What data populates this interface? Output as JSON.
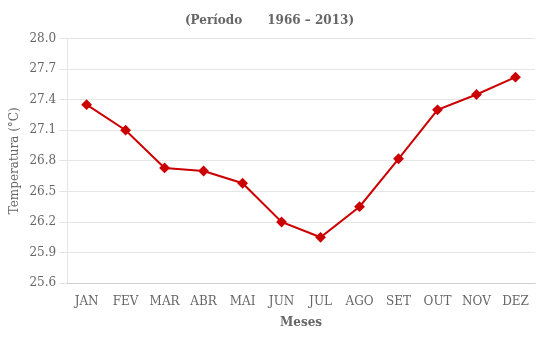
{
  "chart_data": {
    "type": "line",
    "title": "(Período      1966 – 2013)",
    "x_label": "Meses",
    "y_label": "Temperatura (°C)",
    "categories": [
      "JAN",
      "FEV",
      "MAR",
      "ABR",
      "MAI",
      "JUN",
      "JUL",
      "AGO",
      "SET",
      "OUT",
      "NOV",
      "DEZ"
    ],
    "values": [
      27.35,
      27.1,
      26.73,
      26.7,
      26.58,
      26.2,
      26.05,
      26.35,
      26.82,
      27.3,
      27.45,
      27.62
    ],
    "color": "#CC0000",
    "marker": "diamond",
    "ylim": [
      25.6,
      28.0
    ],
    "yticks": [
      25.6,
      25.9,
      26.2,
      26.5,
      26.8,
      27.1,
      27.4,
      27.7,
      {
        "value": 28.0,
        "label": "28.0"
      }
    ],
    "grid": true
  }
}
